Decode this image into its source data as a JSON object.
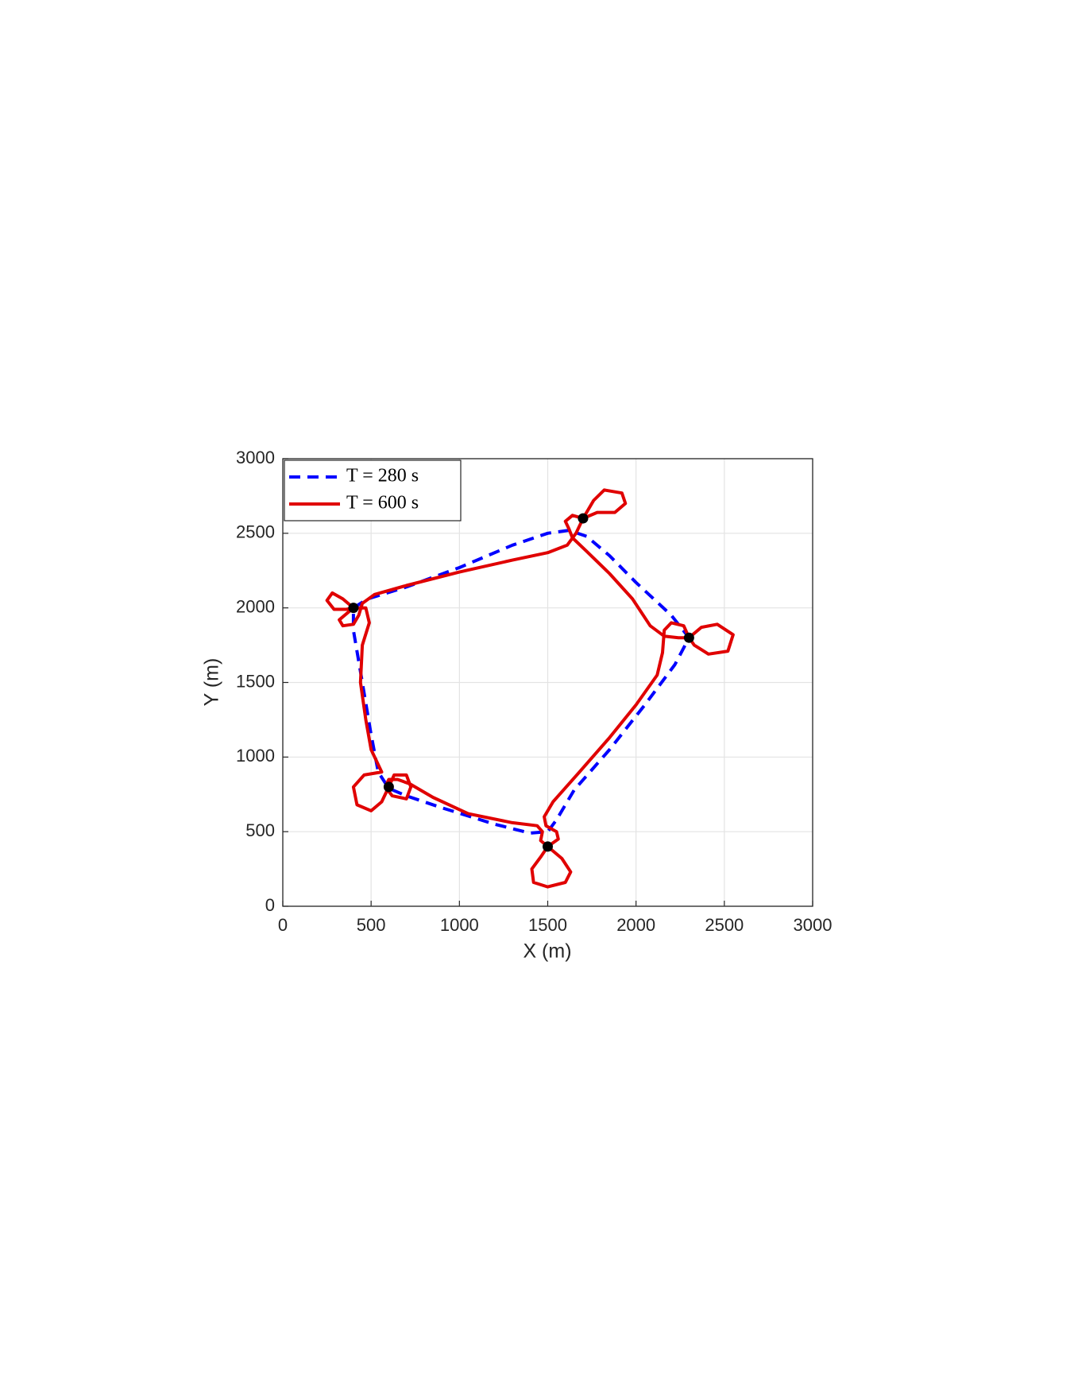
{
  "chart_data": {
    "type": "line",
    "xlabel": "X (m)",
    "ylabel": "Y (m)",
    "xlim": [
      0,
      3000
    ],
    "ylim": [
      0,
      3000
    ],
    "xticks": [
      0,
      500,
      1000,
      1500,
      2000,
      2500,
      3000
    ],
    "yticks": [
      0,
      500,
      1000,
      1500,
      2000,
      2500,
      3000
    ],
    "grid": true,
    "legend": "upper left",
    "series": [
      {
        "name": "T = 280 s",
        "color": "#0000ff",
        "style": "dashed",
        "x": [
          400,
          480,
          700,
          1000,
          1300,
          1500,
          1620,
          1720,
          1850,
          2000,
          2200,
          2300,
          2220,
          2050,
          1850,
          1650,
          1550,
          1500,
          1400,
          1200,
          900,
          700,
          600,
          540,
          500,
          450,
          400,
          400
        ],
        "values": [
          2000,
          2060,
          2140,
          2270,
          2420,
          2500,
          2520,
          2480,
          2350,
          2170,
          1950,
          1800,
          1620,
          1350,
          1050,
          780,
          580,
          500,
          490,
          550,
          660,
          740,
          790,
          900,
          1150,
          1500,
          1850,
          2000
        ]
      },
      {
        "name": "T = 600 s",
        "color": "#e00000",
        "style": "solid",
        "x": [
          400,
          340,
          280,
          250,
          290,
          360,
          400,
          360,
          320,
          340,
          400,
          430,
          450,
          520,
          700,
          1000,
          1300,
          1500,
          1610,
          1660,
          1700,
          1760,
          1820,
          1920,
          1940,
          1880,
          1780,
          1700,
          1640,
          1600,
          1620,
          1640,
          1720,
          1850,
          1980,
          2080,
          2160,
          2240,
          2300,
          2370,
          2460,
          2550,
          2520,
          2410,
          2330,
          2300,
          2270,
          2200,
          2160,
          2150,
          2120,
          2000,
          1850,
          1680,
          1530,
          1480,
          1490,
          1550,
          1560,
          1500,
          1580,
          1630,
          1600,
          1500,
          1420,
          1410,
          1460,
          1500,
          1460,
          1470,
          1440,
          1300,
          1050,
          850,
          720,
          650,
          600,
          580,
          620,
          700,
          725,
          700,
          630,
          600,
          560,
          500,
          420,
          400,
          460,
          560,
          500,
          470,
          440,
          450,
          490,
          470,
          400
        ],
        "values": [
          2000,
          2060,
          2100,
          2050,
          1990,
          1990,
          2000,
          1960,
          1920,
          1880,
          1890,
          1950,
          2030,
          2090,
          2150,
          2240,
          2320,
          2370,
          2420,
          2500,
          2600,
          2720,
          2790,
          2770,
          2700,
          2640,
          2640,
          2600,
          2620,
          2580,
          2530,
          2470,
          2380,
          2230,
          2060,
          1880,
          1810,
          1800,
          1800,
          1870,
          1890,
          1820,
          1710,
          1690,
          1750,
          1800,
          1880,
          1900,
          1850,
          1700,
          1550,
          1350,
          1130,
          900,
          700,
          600,
          540,
          500,
          450,
          400,
          320,
          230,
          160,
          130,
          160,
          250,
          330,
          400,
          440,
          500,
          540,
          560,
          620,
          730,
          820,
          850,
          850,
          800,
          740,
          720,
          800,
          880,
          880,
          800,
          700,
          640,
          680,
          800,
          880,
          900,
          1050,
          1250,
          1500,
          1750,
          1900,
          2000,
          2000
        ]
      }
    ],
    "markers": {
      "color": "#000000",
      "x": [
        400,
        1700,
        2300,
        1500,
        600
      ],
      "values": [
        2000,
        2600,
        1800,
        400,
        800
      ]
    }
  }
}
